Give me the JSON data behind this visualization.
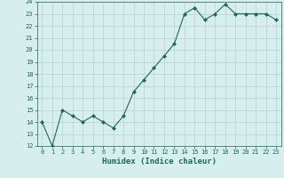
{
  "xlabel": "Humidex (Indice chaleur)",
  "x": [
    0,
    1,
    2,
    3,
    4,
    5,
    6,
    7,
    8,
    9,
    10,
    11,
    12,
    13,
    14,
    15,
    16,
    17,
    18,
    19,
    20,
    21,
    22,
    23
  ],
  "y": [
    14.0,
    12.0,
    15.0,
    14.5,
    14.0,
    14.5,
    14.0,
    13.5,
    14.5,
    16.5,
    17.5,
    18.5,
    19.5,
    20.5,
    23.0,
    23.5,
    22.5,
    23.0,
    23.8,
    23.0,
    23.0,
    23.0,
    23.0,
    22.5
  ],
  "ylim": [
    12,
    24
  ],
  "xlim_min": -0.5,
  "xlim_max": 23.5,
  "yticks": [
    12,
    13,
    14,
    15,
    16,
    17,
    18,
    19,
    20,
    21,
    22,
    23,
    24
  ],
  "xticks": [
    0,
    1,
    2,
    3,
    4,
    5,
    6,
    7,
    8,
    9,
    10,
    11,
    12,
    13,
    14,
    15,
    16,
    17,
    18,
    19,
    20,
    21,
    22,
    23
  ],
  "line_color": "#1a6b5a",
  "marker": "D",
  "marker_size": 2.0,
  "bg_color": "#d6eeee",
  "grid_color": "#b8d0d0",
  "xlabel_fontsize": 6.5,
  "tick_fontsize": 5.0,
  "linewidth": 0.8
}
